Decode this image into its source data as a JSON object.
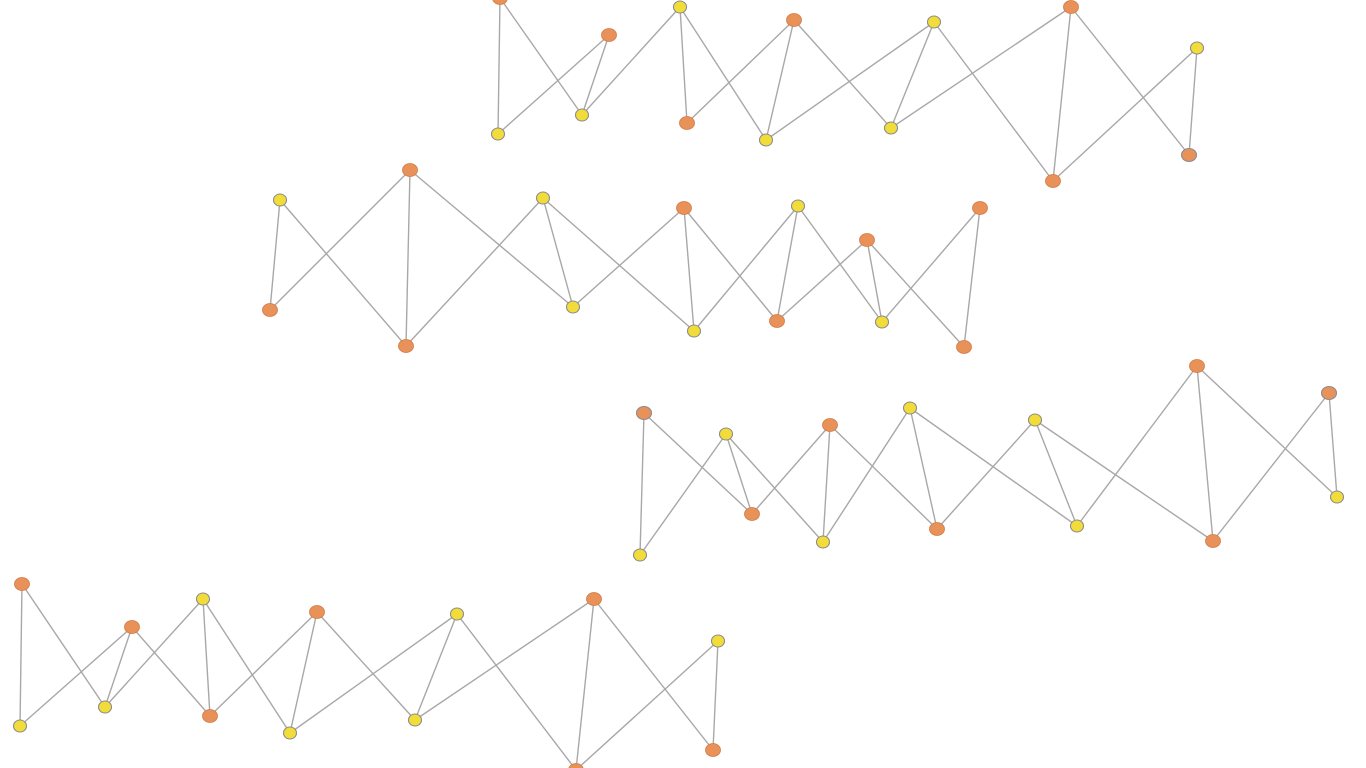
{
  "colors": {
    "background": "#ffffff",
    "edge": "#a8a8a8",
    "orange_node": "#e8925a",
    "orange_node_stroke": "#d17a44",
    "yellow_node": "#f2dc3a",
    "yellow_node_stroke": "#e3b92a",
    "outline_ring": "#8c8c8c"
  },
  "diagram": {
    "title": "",
    "node_kinds": [
      "orange",
      "yellow"
    ]
  }
}
